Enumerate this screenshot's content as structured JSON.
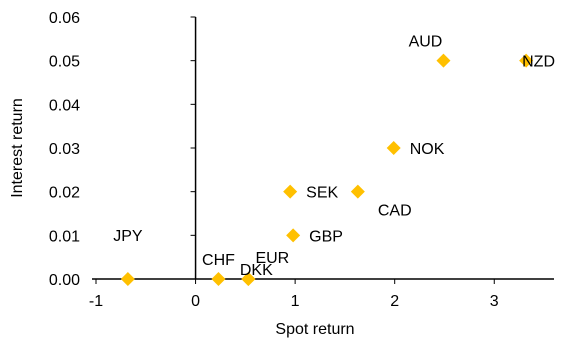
{
  "chart_data": {
    "type": "scatter",
    "title": "",
    "xlabel": "Spot return",
    "ylabel": "Interest return",
    "xlim": [
      -1,
      3.6
    ],
    "ylim": [
      0,
      0.06
    ],
    "x_ticks": [
      -1,
      0,
      1,
      2,
      3
    ],
    "x_tick_labels": [
      "-1",
      "0",
      "1",
      "2",
      "3"
    ],
    "y_ticks": [
      0,
      0.01,
      0.02,
      0.03,
      0.04,
      0.05,
      0.06
    ],
    "y_tick_labels": [
      "0.00",
      "0.01",
      "0.02",
      "0.03",
      "0.04",
      "0.05",
      "0.06"
    ],
    "grid": false,
    "marker": "diamond",
    "marker_color": "#FFC000",
    "points": [
      {
        "label": "JPY",
        "x": -0.68,
        "y": 0.0,
        "label_pos": "above-far"
      },
      {
        "label": "CHF",
        "x": 0.23,
        "y": 0.0,
        "label_pos": "above"
      },
      {
        "label": "DKK",
        "x": 0.53,
        "y": 0.0,
        "label_pos": "left-above"
      },
      {
        "label": "EUR",
        "x": 0.53,
        "y": 0.0,
        "label_pos": "above-right"
      },
      {
        "label": "GBP",
        "x": 0.98,
        "y": 0.01,
        "label_pos": "right"
      },
      {
        "label": "SEK",
        "x": 0.95,
        "y": 0.02,
        "label_pos": "right"
      },
      {
        "label": "CAD",
        "x": 1.63,
        "y": 0.02,
        "label_pos": "below-right"
      },
      {
        "label": "NOK",
        "x": 1.99,
        "y": 0.03,
        "label_pos": "right"
      },
      {
        "label": "AUD",
        "x": 2.49,
        "y": 0.05,
        "label_pos": "above-left"
      },
      {
        "label": "NZD",
        "x": 3.32,
        "y": 0.05,
        "label_pos": "over"
      }
    ]
  }
}
